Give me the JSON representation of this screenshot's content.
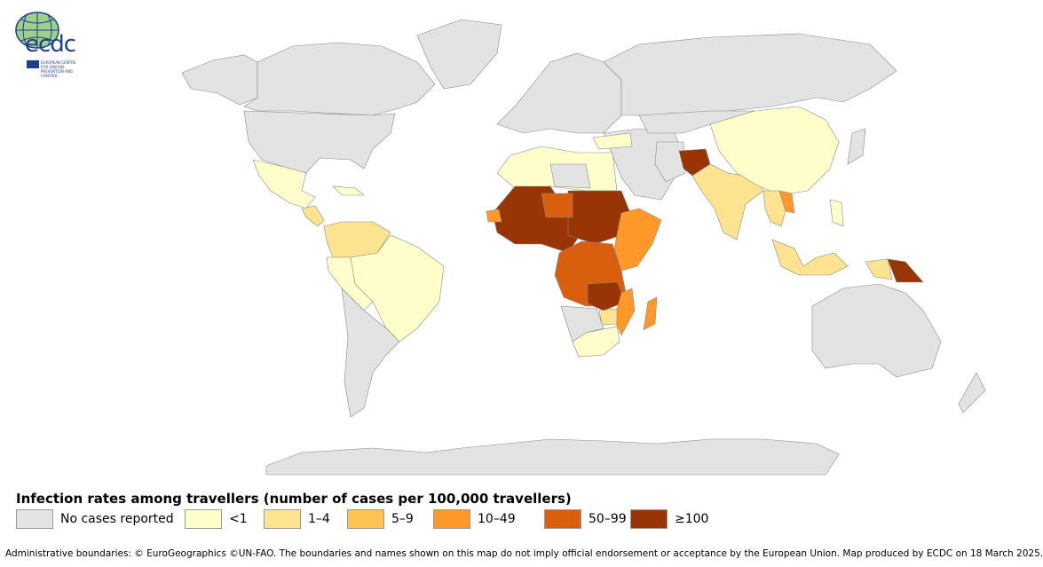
{
  "logo": {
    "name": "ecdc",
    "subtitle": "EUROPEAN CENTRE FOR DISEASE PREVENTION AND CONTROL"
  },
  "legend": {
    "title": "Infection rates among travellers (number of cases per 100,000 travellers)",
    "items": [
      {
        "label": "No cases reported",
        "color": "#e3e3e3"
      },
      {
        "label": "<1",
        "color": "#ffffcc"
      },
      {
        "label": "1–4",
        "color": "#fee391"
      },
      {
        "label": "5–9",
        "color": "#fec44f"
      },
      {
        "label": "10–49",
        "color": "#fe9929"
      },
      {
        "label": "50–99",
        "color": "#d95f0e"
      },
      {
        "label": "≥100",
        "color": "#993404"
      }
    ]
  },
  "footer": "Administrative boundaries: © EuroGeographics ©UN-FAO. The boundaries and names shown on this map do not imply official endorsement or acceptance by the European Union. Map produced by ECDC on 18 March 2025."
}
